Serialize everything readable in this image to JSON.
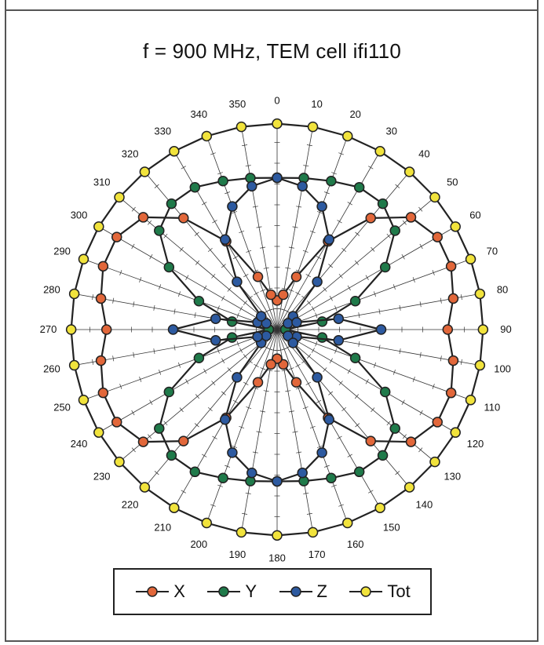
{
  "chart_data": {
    "type": "polar-line",
    "title": "f = 900 MHz, TEM cell ifi110",
    "angle_labels": [
      "0",
      "10",
      "20",
      "30",
      "40",
      "50",
      "60",
      "70",
      "80",
      "90",
      "100",
      "110",
      "120",
      "130",
      "140",
      "150",
      "160",
      "170",
      "180",
      "190",
      "200",
      "210",
      "220",
      "230",
      "240",
      "250",
      "260",
      "270",
      "280",
      "290",
      "300",
      "310",
      "320",
      "330",
      "340",
      "350"
    ],
    "angles_deg": [
      0,
      10,
      20,
      30,
      40,
      50,
      60,
      70,
      80,
      90,
      100,
      110,
      120,
      130,
      140,
      150,
      160,
      170,
      180,
      190,
      200,
      210,
      220,
      230,
      240,
      250,
      260,
      270,
      280,
      290,
      300,
      310,
      320,
      330,
      340,
      350
    ],
    "radial_range": [
      0,
      1
    ],
    "grid": true,
    "legend_placement": "bottom",
    "series": [
      {
        "name": "X",
        "color": "#e2673a",
        "values": [
          0.14,
          0.17,
          0.27,
          0.49,
          0.7,
          0.84,
          0.89,
          0.89,
          0.86,
          0.82,
          0.86,
          0.89,
          0.89,
          0.84,
          0.7,
          0.49,
          0.27,
          0.17,
          0.14,
          0.17,
          0.27,
          0.49,
          0.7,
          0.84,
          0.89,
          0.89,
          0.86,
          0.82,
          0.86,
          0.89,
          0.89,
          0.84,
          0.7,
          0.49,
          0.27,
          0.17
        ]
      },
      {
        "name": "Y",
        "color": "#1f7a4a",
        "values": [
          0.73,
          0.74,
          0.76,
          0.79,
          0.79,
          0.74,
          0.6,
          0.4,
          0.22,
          0.04,
          0.22,
          0.4,
          0.6,
          0.74,
          0.79,
          0.79,
          0.76,
          0.74,
          0.73,
          0.74,
          0.76,
          0.79,
          0.79,
          0.74,
          0.6,
          0.4,
          0.22,
          0.04,
          0.22,
          0.4,
          0.6,
          0.74,
          0.79,
          0.79,
          0.76,
          0.74
        ]
      },
      {
        "name": "Z",
        "color": "#2d5aa0",
        "values": [
          0.73,
          0.7,
          0.63,
          0.5,
          0.3,
          0.1,
          0.06,
          0.1,
          0.3,
          0.5,
          0.3,
          0.1,
          0.06,
          0.1,
          0.3,
          0.5,
          0.63,
          0.7,
          0.73,
          0.7,
          0.63,
          0.5,
          0.3,
          0.1,
          0.06,
          0.1,
          0.3,
          0.5,
          0.3,
          0.1,
          0.06,
          0.1,
          0.3,
          0.5,
          0.63,
          0.7
        ]
      },
      {
        "name": "Tot",
        "color": "#f1e33c",
        "values": [
          0.99,
          0.99,
          0.99,
          0.99,
          0.99,
          0.99,
          0.99,
          0.99,
          0.99,
          0.99,
          0.99,
          0.99,
          0.99,
          0.99,
          0.99,
          0.99,
          0.99,
          0.99,
          0.99,
          0.99,
          0.99,
          0.99,
          0.99,
          0.99,
          0.99,
          0.99,
          0.99,
          0.99,
          0.99,
          0.99,
          0.99,
          0.99,
          0.99,
          0.99,
          0.99,
          0.99
        ]
      }
    ]
  }
}
